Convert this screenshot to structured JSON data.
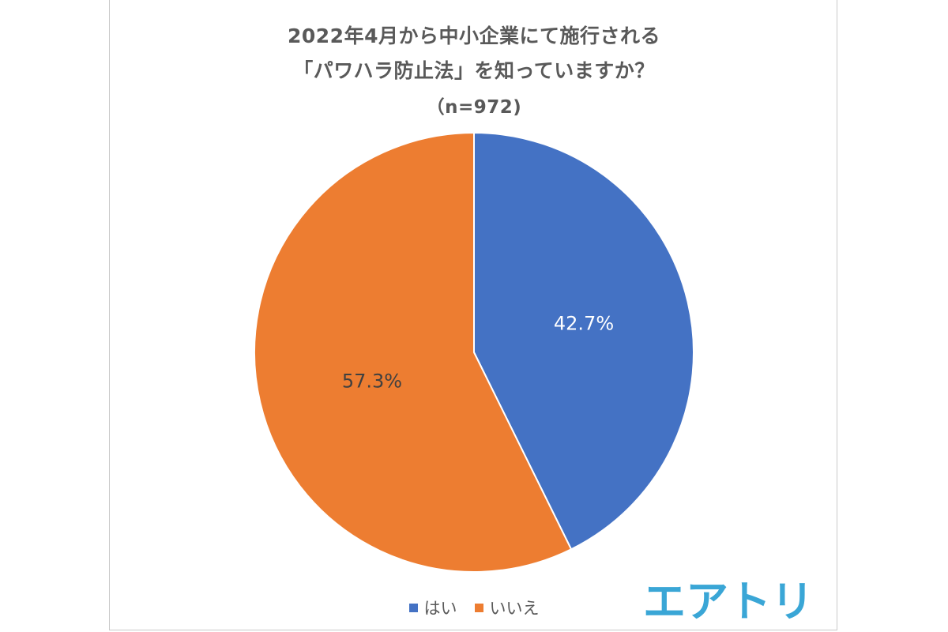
{
  "chart_data": {
    "type": "pie",
    "title_line1": "2022年4月から中小企業にて施行される",
    "title_line2": "「パワハラ防止法」を知っていますか？",
    "subtitle": "（n=972)",
    "categories": [
      "はい",
      "いいえ"
    ],
    "values": [
      42.7,
      57.3
    ],
    "labels": [
      "42.7%",
      "57.3%"
    ],
    "colors": [
      "#4472C4",
      "#ED7D31"
    ],
    "legend_position": "bottom"
  },
  "logo": {
    "text": "エアトリ",
    "color": "#3aa6d6"
  }
}
